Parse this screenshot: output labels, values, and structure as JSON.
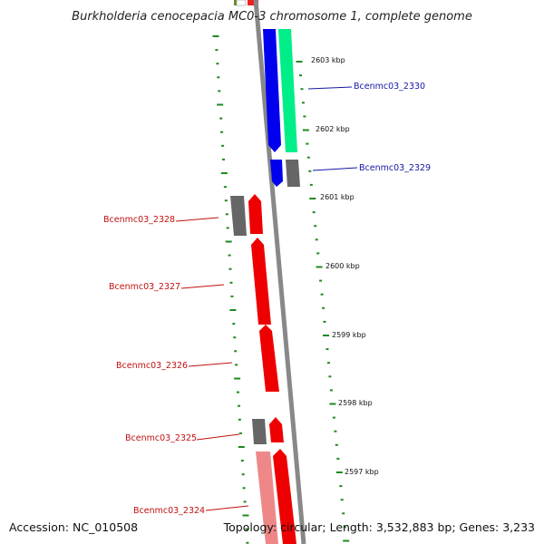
{
  "title": "Burkholderia cenocepacia MC0-3 chromosome 1, complete genome",
  "footer": {
    "accession": "Accession: NC_010508",
    "topology": "Topology: circular; Length: 3,532,883 bp; Genes: 3,233"
  },
  "colors": {
    "forward_strand": "#0000ee",
    "forward_label": "#1515a8",
    "reverse_strand": "#ee0000",
    "reverse_label": "#c01010",
    "teal_feature": "#00ee88",
    "gray_feature": "#666666",
    "backbone": "#888888",
    "ticks": "#1e8a1e"
  },
  "kbp_labels": [
    "2603 kbp",
    "2602 kbp",
    "2601 kbp",
    "2600 kbp",
    "2599 kbp",
    "2598 kbp",
    "2597 kbp"
  ],
  "genes": {
    "forward": [
      "Bcenmc03_2330",
      "Bcenmc03_2329"
    ],
    "reverse": [
      "Bcenmc03_2328",
      "Bcenmc03_2327",
      "Bcenmc03_2326",
      "Bcenmc03_2325",
      "Bcenmc03_2324"
    ]
  }
}
